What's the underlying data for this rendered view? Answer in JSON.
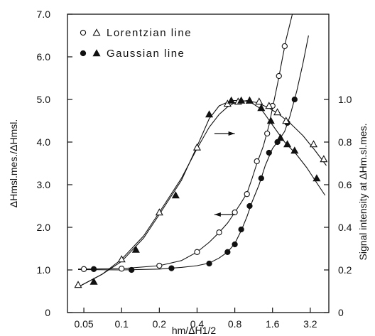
{
  "chart_data": {
    "type": "scatter",
    "x_scale": "log",
    "x_ticks": [
      "0.05",
      "0.1",
      "0.2",
      "0.4",
      "0.8",
      "1.6",
      "3.2"
    ],
    "x_tick_values": [
      0.05,
      0.1,
      0.2,
      0.4,
      0.8,
      1.6,
      3.2
    ],
    "xlim": [
      0.037,
      4.5
    ],
    "xlabel": "hm/ΔH1/2",
    "left_axis": {
      "label": "ΔHmsl.mes./ΔHmsl.",
      "ylim": [
        0,
        7.0
      ],
      "ticks": [
        "0",
        "1.0",
        "2.0",
        "3.0",
        "4.0",
        "5.0",
        "6.0",
        "7.0"
      ],
      "tick_values": [
        0,
        1,
        2,
        3,
        4,
        5,
        6,
        7
      ]
    },
    "right_axis": {
      "label": "Signal intensity at ΔHm.sl.mes.",
      "ylim": [
        0,
        1.4
      ],
      "ticks": [
        "0",
        "0.2",
        "0.4",
        "0.6",
        "0.8",
        "1.0"
      ],
      "tick_values": [
        0,
        0.2,
        0.4,
        0.6,
        0.8,
        1.0
      ]
    },
    "legend": {
      "placement": "top-left",
      "entries": [
        {
          "label": "Lorentzian line",
          "markers": [
            "open-circle",
            "open-triangle"
          ]
        },
        {
          "label": "Gaussian line",
          "markers": [
            "filled-circle",
            "filled-triangle"
          ]
        }
      ]
    },
    "series": [
      {
        "marker": "open-circle",
        "axis": "left",
        "points": [
          [
            0.05,
            1.02
          ],
          [
            0.1,
            1.03
          ],
          [
            0.2,
            1.1
          ],
          [
            0.4,
            1.42
          ],
          [
            0.6,
            1.88
          ],
          [
            0.8,
            2.35
          ],
          [
            1.0,
            2.78
          ],
          [
            1.2,
            3.55
          ],
          [
            1.45,
            4.2
          ],
          [
            1.6,
            4.85
          ],
          [
            1.8,
            5.55
          ],
          [
            2.0,
            6.25
          ]
        ]
      },
      {
        "marker": "filled-circle",
        "axis": "left",
        "points": [
          [
            0.06,
            1.02
          ],
          [
            0.12,
            1.0
          ],
          [
            0.25,
            1.04
          ],
          [
            0.5,
            1.15
          ],
          [
            0.7,
            1.42
          ],
          [
            0.8,
            1.6
          ],
          [
            0.9,
            1.95
          ],
          [
            1.05,
            2.5
          ],
          [
            1.3,
            3.15
          ],
          [
            1.5,
            3.75
          ],
          [
            1.75,
            4.0
          ],
          [
            2.1,
            4.45
          ],
          [
            2.4,
            5.0
          ]
        ]
      },
      {
        "marker": "open-triangle",
        "axis": "right",
        "points": [
          [
            0.045,
            0.13
          ],
          [
            0.1,
            0.25
          ],
          [
            0.2,
            0.47
          ],
          [
            0.4,
            0.775
          ],
          [
            0.7,
            0.98
          ],
          [
            0.85,
            0.99
          ],
          [
            1.05,
            0.995
          ],
          [
            1.25,
            0.99
          ],
          [
            1.5,
            0.97
          ],
          [
            1.75,
            0.94
          ],
          [
            2.05,
            0.9
          ],
          [
            3.4,
            0.79
          ],
          [
            4.1,
            0.72
          ]
        ]
      },
      {
        "marker": "filled-triangle",
        "axis": "right",
        "points": [
          [
            0.06,
            0.145
          ],
          [
            0.13,
            0.295
          ],
          [
            0.27,
            0.55
          ],
          [
            0.5,
            0.93
          ],
          [
            0.75,
            0.995
          ],
          [
            0.9,
            0.995
          ],
          [
            1.05,
            0.995
          ],
          [
            1.3,
            0.96
          ],
          [
            1.55,
            0.9
          ],
          [
            1.85,
            0.82
          ],
          [
            2.1,
            0.79
          ],
          [
            2.4,
            0.76
          ],
          [
            3.6,
            0.63
          ]
        ]
      }
    ],
    "curves": [
      {
        "name": "lorentz-width-curve",
        "axis": "left",
        "points": [
          [
            0.045,
            1.02
          ],
          [
            0.1,
            1.03
          ],
          [
            0.2,
            1.1
          ],
          [
            0.3,
            1.22
          ],
          [
            0.4,
            1.42
          ],
          [
            0.5,
            1.65
          ],
          [
            0.6,
            1.88
          ],
          [
            0.7,
            2.1
          ],
          [
            0.8,
            2.35
          ],
          [
            0.9,
            2.58
          ],
          [
            1.0,
            2.8
          ],
          [
            1.1,
            3.15
          ],
          [
            1.2,
            3.5
          ],
          [
            1.35,
            3.9
          ],
          [
            1.5,
            4.4
          ],
          [
            1.6,
            4.8
          ],
          [
            1.75,
            5.35
          ],
          [
            1.9,
            5.9
          ],
          [
            2.05,
            6.4
          ],
          [
            2.3,
            7.0
          ]
        ]
      },
      {
        "name": "gauss-width-curve",
        "axis": "left",
        "points": [
          [
            0.045,
            1.01
          ],
          [
            0.1,
            1.0
          ],
          [
            0.2,
            1.02
          ],
          [
            0.3,
            1.06
          ],
          [
            0.4,
            1.1
          ],
          [
            0.5,
            1.16
          ],
          [
            0.6,
            1.28
          ],
          [
            0.7,
            1.42
          ],
          [
            0.8,
            1.62
          ],
          [
            0.9,
            1.92
          ],
          [
            1.0,
            2.25
          ],
          [
            1.1,
            2.6
          ],
          [
            1.25,
            3.0
          ],
          [
            1.4,
            3.45
          ],
          [
            1.6,
            3.85
          ],
          [
            1.8,
            4.05
          ],
          [
            2.0,
            4.25
          ],
          [
            2.2,
            4.6
          ],
          [
            2.5,
            5.2
          ],
          [
            2.8,
            5.85
          ],
          [
            3.1,
            6.5
          ]
        ]
      },
      {
        "name": "lorentz-intensity-curve",
        "axis": "right",
        "points": [
          [
            0.045,
            0.12
          ],
          [
            0.07,
            0.18
          ],
          [
            0.1,
            0.25
          ],
          [
            0.15,
            0.36
          ],
          [
            0.2,
            0.47
          ],
          [
            0.3,
            0.63
          ],
          [
            0.4,
            0.77
          ],
          [
            0.5,
            0.87
          ],
          [
            0.6,
            0.93
          ],
          [
            0.7,
            0.965
          ],
          [
            0.8,
            0.985
          ],
          [
            1.0,
            0.995
          ],
          [
            1.2,
            0.985
          ],
          [
            1.5,
            0.96
          ],
          [
            1.8,
            0.93
          ],
          [
            2.2,
            0.89
          ],
          [
            2.8,
            0.83
          ],
          [
            3.5,
            0.76
          ],
          [
            4.3,
            0.69
          ]
        ]
      },
      {
        "name": "gauss-intensity-curve",
        "axis": "right",
        "points": [
          [
            0.045,
            0.12
          ],
          [
            0.07,
            0.18
          ],
          [
            0.1,
            0.24
          ],
          [
            0.15,
            0.35
          ],
          [
            0.2,
            0.46
          ],
          [
            0.3,
            0.62
          ],
          [
            0.4,
            0.78
          ],
          [
            0.5,
            0.91
          ],
          [
            0.6,
            0.97
          ],
          [
            0.75,
            0.995
          ],
          [
            0.9,
            0.995
          ],
          [
            1.05,
            0.99
          ],
          [
            1.3,
            0.955
          ],
          [
            1.6,
            0.88
          ],
          [
            2.0,
            0.8
          ],
          [
            2.5,
            0.74
          ],
          [
            3.0,
            0.68
          ],
          [
            3.5,
            0.62
          ],
          [
            4.2,
            0.55
          ]
        ]
      }
    ],
    "annotations": [
      {
        "name": "arrow-to-right-axis",
        "direction": "right",
        "from": [
          0.55,
          4.2
        ],
        "to": [
          0.8,
          4.2
        ]
      },
      {
        "name": "arrow-to-left-axis",
        "direction": "left",
        "from": [
          0.8,
          2.3
        ],
        "to": [
          0.55,
          2.3
        ]
      }
    ]
  }
}
